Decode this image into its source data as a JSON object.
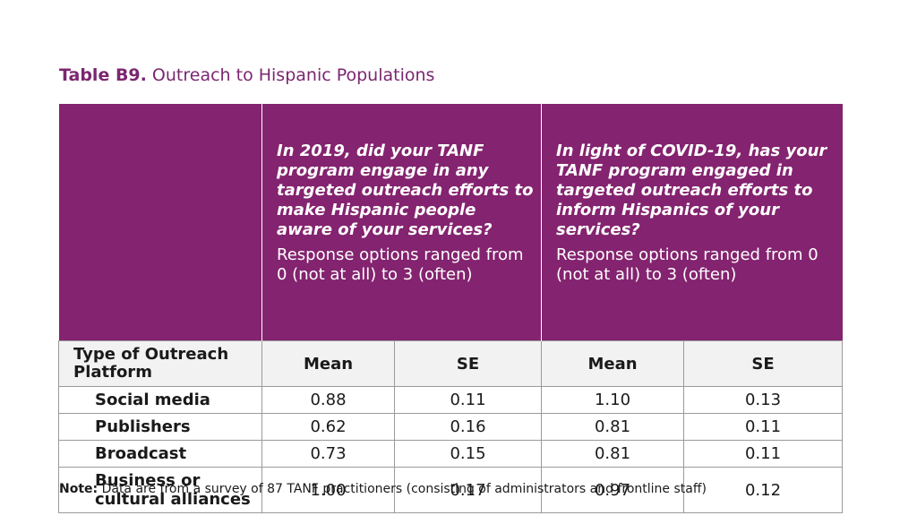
{
  "caption": {
    "label": "Table B9.",
    "title": "Outreach to Hispanic Populations"
  },
  "questions": [
    {
      "text": "In 2019, did your TANF program engage in any targeted outreach efforts to make Hispanic people aware of your services?",
      "note": "Response options ranged from 0 (not at all) to 3 (often)"
    },
    {
      "text": "In light of COVID-19, has your TANF program engaged in targeted outreach efforts to inform Hispanics of your services?",
      "note": "Response options ranged from 0 (not at all) to 3 (often)"
    }
  ],
  "columns": {
    "row_header": "Type of Outreach Platform",
    "mean": "Mean",
    "se": "SE"
  },
  "rows": [
    {
      "label": "Social media",
      "v": [
        "0.88",
        "0.11",
        "1.10",
        "0.13"
      ]
    },
    {
      "label": "Publishers",
      "v": [
        "0.62",
        "0.16",
        "0.81",
        "0.11"
      ]
    },
    {
      "label": "Broadcast",
      "v": [
        "0.73",
        "0.15",
        "0.81",
        "0.11"
      ]
    },
    {
      "label": "Business or cultural alliances",
      "v": [
        "1.00",
        "0.17",
        "0.97",
        "0.12"
      ]
    }
  ],
  "note": {
    "label": "Note:",
    "text": "Data are from a survey of 87 TANF practitioners (consisting of administrators and frontline staff)"
  },
  "colors": {
    "header_purple": "#84236f",
    "caption_purple": "#7b2670",
    "subheader_gray": "#f2f2f2"
  }
}
